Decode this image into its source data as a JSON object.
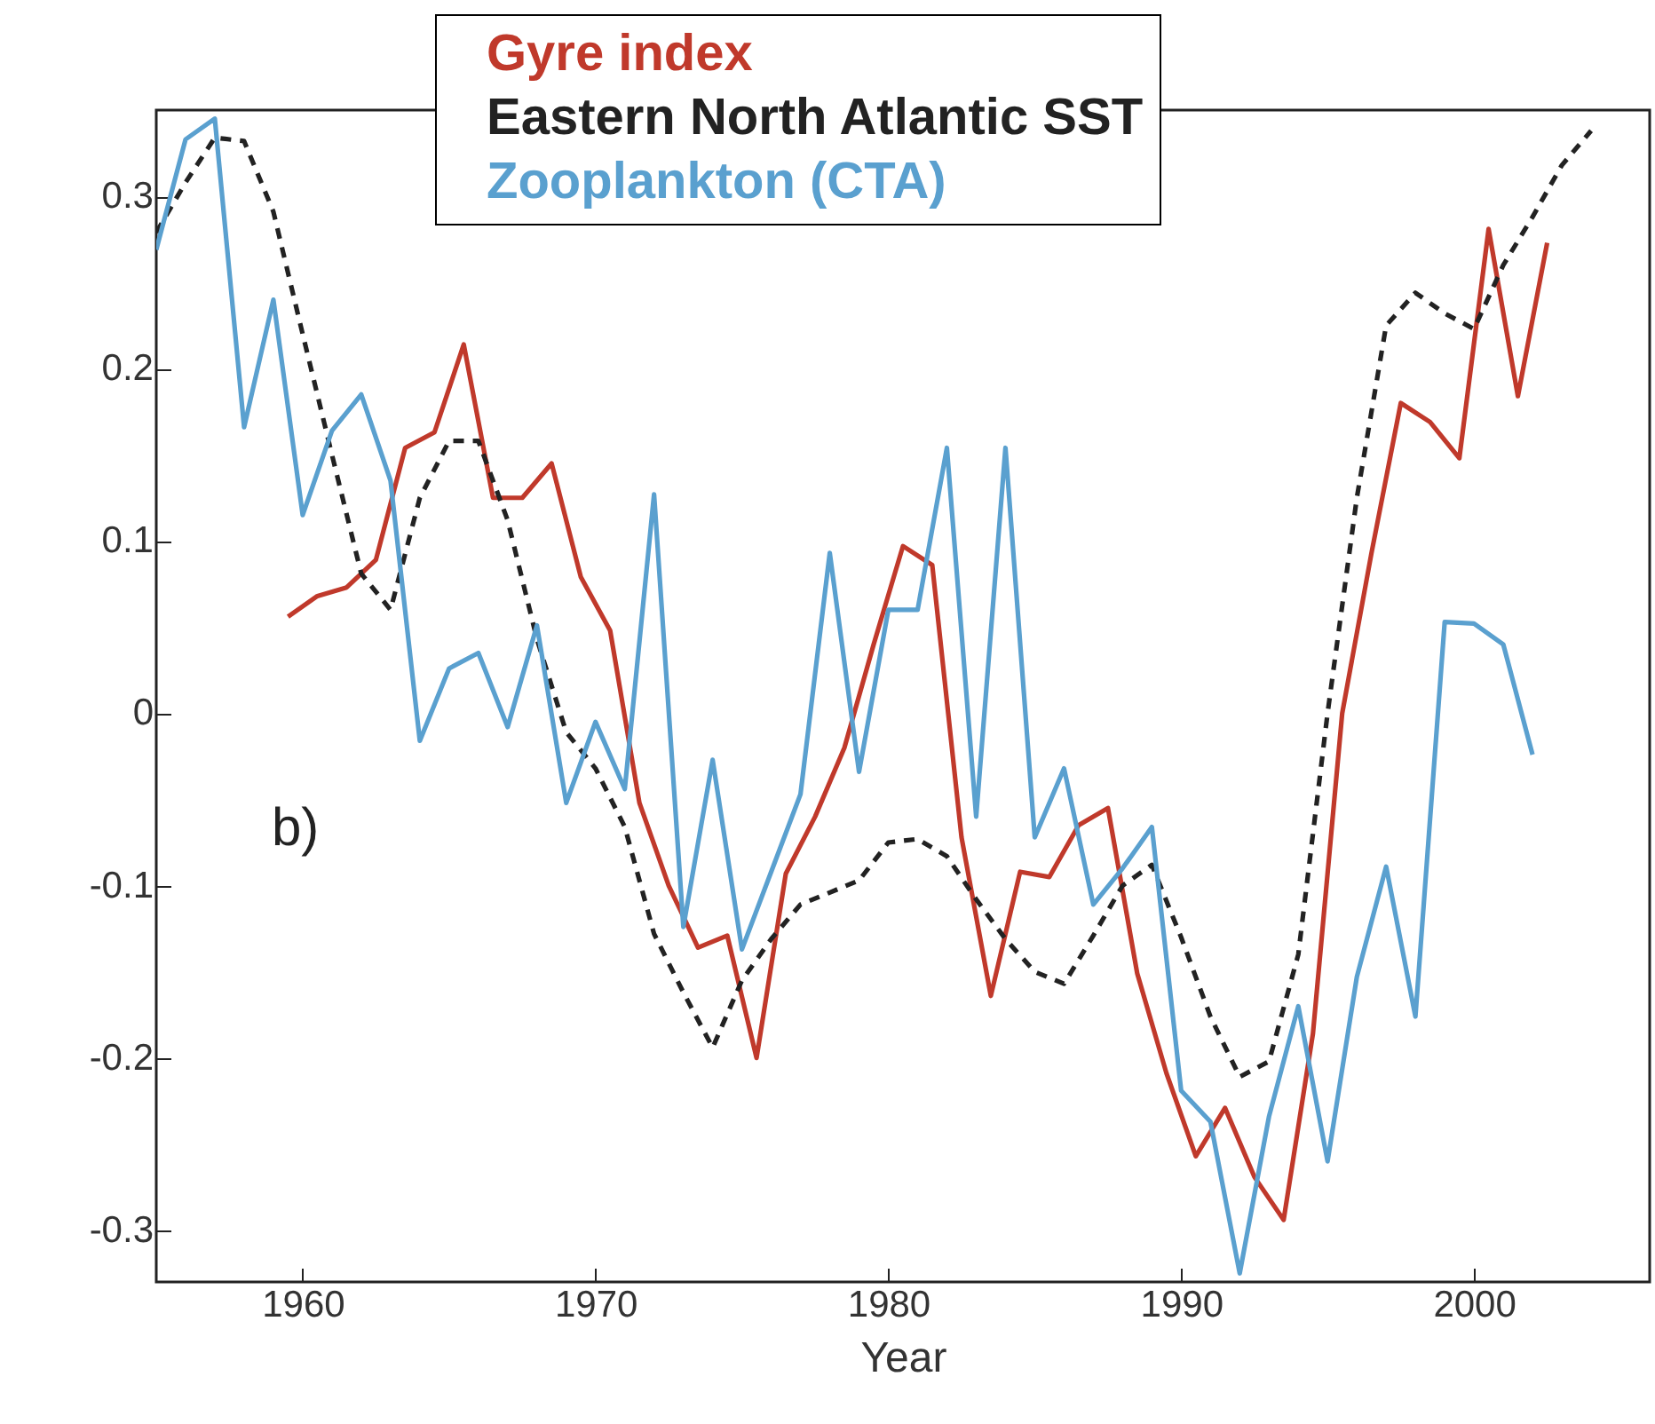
{
  "chart_data": {
    "type": "line",
    "xlabel": "Year",
    "xlim": [
      1955,
      2006
    ],
    "xticks": [
      1960,
      1970,
      1980,
      1990,
      2000
    ],
    "ylim": [
      -0.33,
      0.35
    ],
    "yticks": [
      -0.3,
      -0.2,
      -0.1,
      0,
      0.1,
      0.2,
      0.3
    ],
    "grid": false,
    "legend": "top",
    "annotations": [
      "b)"
    ],
    "series": [
      {
        "name": "Gyre index",
        "color": "#c0392b",
        "line_style": "solid",
        "x": [
          1959.5,
          1960.5,
          1961.5,
          1962.5,
          1963.5,
          1964.5,
          1965.5,
          1966.5,
          1967.5,
          1968.5,
          1969.5,
          1970.5,
          1971.5,
          1972.5,
          1973.5,
          1974.5,
          1975.5,
          1976.5,
          1977.5,
          1978.5,
          1979.5,
          1980.5,
          1981.5,
          1982.5,
          1983.5,
          1984.5,
          1985.5,
          1986.5,
          1987.5,
          1988.5,
          1989.5,
          1990.5,
          1991.5,
          1992.5,
          1993.5,
          1994.5,
          1995.5,
          1996.5,
          1997.5,
          1998.5,
          1999.5,
          2000.5,
          2001.5,
          2002.5
        ],
        "values": [
          0.056,
          0.068,
          0.073,
          0.089,
          0.154,
          0.163,
          0.214,
          0.125,
          0.125,
          0.145,
          0.079,
          0.048,
          -0.052,
          -0.1,
          -0.136,
          -0.129,
          -0.2,
          -0.093,
          -0.06,
          -0.02,
          0.04,
          0.097,
          0.086,
          -0.072,
          -0.164,
          -0.092,
          -0.095,
          -0.065,
          -0.055,
          -0.151,
          -0.209,
          -0.257,
          -0.229,
          -0.269,
          -0.294,
          -0.186,
          0.0,
          0.093,
          0.18,
          0.169,
          0.148,
          0.281,
          0.184,
          0.273
        ]
      },
      {
        "name": "Eastern North Atlantic SST",
        "color": "#222222",
        "line_style": "dashed",
        "x": [
          1955,
          1956,
          1957,
          1958,
          1959,
          1960,
          1961,
          1962,
          1963,
          1964,
          1965,
          1966,
          1967,
          1968,
          1969,
          1970,
          1971,
          1972,
          1973,
          1974,
          1975,
          1976,
          1977,
          1978,
          1979,
          1980,
          1981,
          1982,
          1983,
          1984,
          1985,
          1986,
          1987,
          1988,
          1989,
          1990,
          1991,
          1992,
          1993,
          1994,
          1995,
          1996,
          1997,
          1998,
          1999,
          2000,
          2001,
          2002,
          2003,
          2004
        ],
        "values": [
          0.279,
          0.308,
          0.334,
          0.332,
          0.291,
          0.22,
          0.15,
          0.081,
          0.06,
          0.125,
          0.158,
          0.158,
          0.112,
          0.043,
          -0.011,
          -0.032,
          -0.066,
          -0.128,
          -0.162,
          -0.194,
          -0.155,
          -0.131,
          -0.111,
          -0.104,
          -0.097,
          -0.075,
          -0.073,
          -0.083,
          -0.108,
          -0.131,
          -0.15,
          -0.157,
          -0.129,
          -0.1,
          -0.088,
          -0.13,
          -0.176,
          -0.211,
          -0.202,
          -0.14,
          0.0,
          0.125,
          0.225,
          0.244,
          0.232,
          0.223,
          0.26,
          0.288,
          0.318,
          0.338
        ]
      },
      {
        "name": "Zooplankton (CTA)",
        "color": "#5aa0cf",
        "line_style": "solid",
        "x": [
          1955,
          1956,
          1957,
          1958,
          1959,
          1960,
          1961,
          1962,
          1963,
          1964,
          1965,
          1966,
          1967,
          1968,
          1969,
          1970,
          1971,
          1972,
          1973,
          1974,
          1975,
          1976,
          1977,
          1978,
          1979,
          1980,
          1981,
          1982,
          1983,
          1984,
          1985,
          1986,
          1987,
          1988,
          1989,
          1990,
          1991,
          1992,
          1993,
          1994,
          1995,
          1996,
          1997,
          1998,
          1999,
          2000,
          2001,
          2002
        ],
        "values": [
          0.269,
          0.333,
          0.345,
          0.166,
          0.24,
          0.115,
          0.164,
          0.185,
          0.135,
          -0.016,
          0.026,
          0.035,
          -0.008,
          0.051,
          -0.052,
          -0.005,
          -0.044,
          0.127,
          -0.124,
          -0.027,
          -0.137,
          -0.092,
          -0.047,
          0.093,
          -0.034,
          0.06,
          0.06,
          0.154,
          -0.06,
          0.154,
          -0.072,
          -0.032,
          -0.111,
          -0.09,
          -0.066,
          -0.219,
          -0.237,
          -0.325,
          -0.234,
          -0.17,
          -0.26,
          -0.153,
          -0.089,
          -0.176,
          0.053,
          0.052,
          0.04,
          -0.024
        ]
      }
    ]
  }
}
